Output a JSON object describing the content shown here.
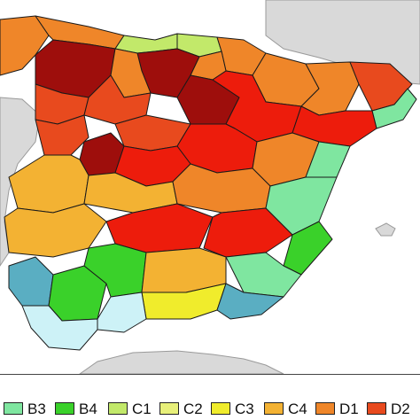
{
  "legend": {
    "items": [
      {
        "code": "B3",
        "color": "#7fe6a0"
      },
      {
        "code": "B4",
        "color": "#3ad12a"
      },
      {
        "code": "C1",
        "color": "#c2e96a"
      },
      {
        "code": "C2",
        "color": "#e8f07a"
      },
      {
        "code": "C3",
        "color": "#f0ec2c"
      },
      {
        "code": "C4",
        "color": "#f3b233"
      },
      {
        "code": "D1",
        "color": "#ef8629"
      },
      {
        "code": "D2",
        "color": "#e84a1e"
      }
    ]
  },
  "map_colors": {
    "land": "#d9d9d9",
    "sea": "#ffffff",
    "B3": "#7fe6a0",
    "B4": "#3ad12a",
    "C1": "#c2e96a",
    "C2": "#e8f07a",
    "C3": "#f0ec2c",
    "C4": "#f3b233",
    "D1": "#ef8629",
    "D2": "#e84a1e",
    "D3": "#ed1c0c",
    "E1": "#9e0e0c",
    "A3": "#5aaec2",
    "A4": "#cdf2f7"
  }
}
